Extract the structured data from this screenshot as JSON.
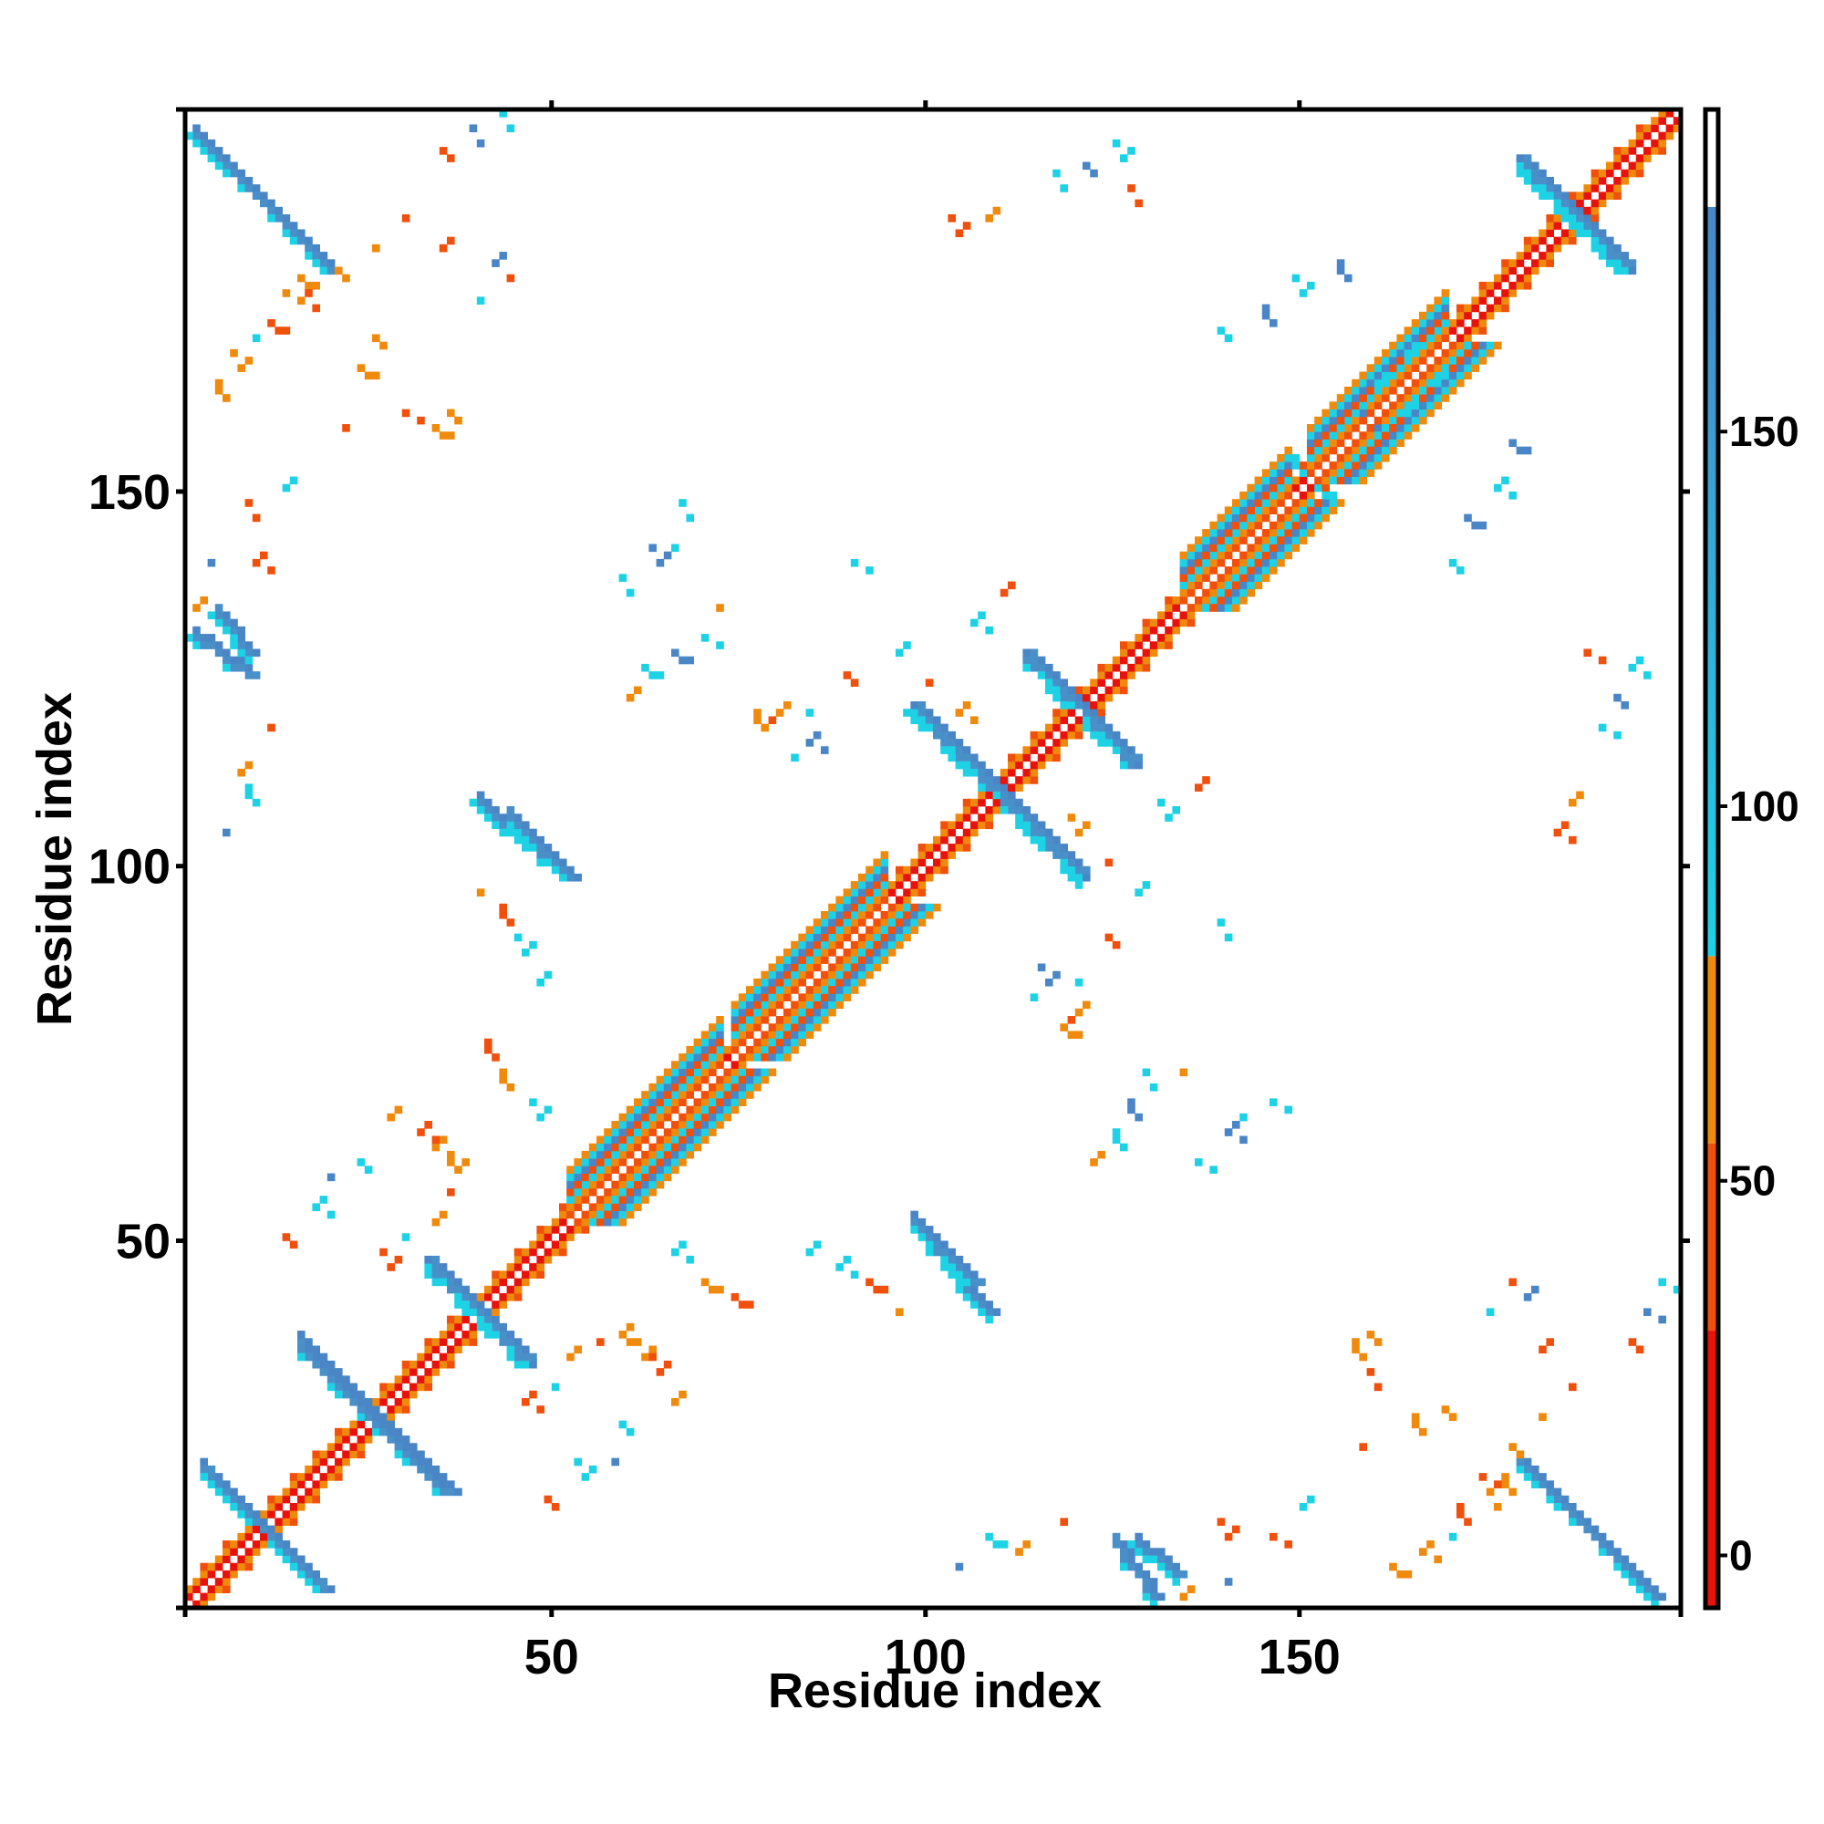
{
  "chart_data": {
    "type": "heatmap",
    "title": "",
    "xlabel": "Residue index",
    "ylabel": "Residue index",
    "xlim": [
      1,
      201
    ],
    "ylim": [
      1,
      201
    ],
    "x_ticks": [
      50,
      100,
      150
    ],
    "y_ticks": [
      50,
      100,
      150
    ],
    "x_tick_labels": [
      "50",
      "100",
      "150"
    ],
    "y_tick_labels": [
      "50",
      "100",
      "150"
    ],
    "grid": false,
    "colorbar": {
      "position": "right",
      "ticks": [
        0,
        50,
        100,
        150
      ],
      "tick_labels": [
        "0",
        "50",
        "100",
        "150"
      ],
      "range": [
        -7,
        193
      ],
      "segments": [
        {
          "from": -7,
          "to": 30,
          "color": "#e8120c"
        },
        {
          "from": 30,
          "to": 55,
          "color": "#f0500c"
        },
        {
          "from": 55,
          "to": 80,
          "color": "#f08a0c"
        },
        {
          "from": 80,
          "to": 180,
          "color": "#1ed2e6",
          "to_color": "#4a86c6"
        },
        {
          "from": 180,
          "to": 193,
          "color": "#ffffff"
        }
      ]
    },
    "palette": {
      "diag_red": "#e8120c",
      "red_orange": "#f0500c",
      "orange": "#f08a0c",
      "cyan": "#1ed2e6",
      "blue": "#4a86c6",
      "steel_blue": "#4a90c8"
    },
    "features": [
      {
        "kind": "diagonal-band",
        "from": 1,
        "to": 201
      },
      {
        "kind": "helix",
        "from": 52,
        "to": 72
      },
      {
        "kind": "helix",
        "from": 74,
        "to": 94
      },
      {
        "kind": "helix",
        "from": 134,
        "to": 148
      },
      {
        "kind": "helix",
        "from": 151,
        "to": 169
      },
      {
        "kind": "sheet-pair",
        "a": [
          3,
          18
        ],
        "b": [
          19,
          4
        ]
      },
      {
        "kind": "sheet-pair",
        "a": [
          16,
          35
        ],
        "b": [
          36,
          16
        ]
      },
      {
        "kind": "sheet-pair",
        "a": [
          33,
          46
        ],
        "b": [
          46,
          34
        ]
      },
      {
        "kind": "sheet-pair",
        "a": [
          98,
          120
        ],
        "b": [
          120,
          99
        ]
      },
      {
        "kind": "sheet-pair",
        "a": [
          113,
          127
        ],
        "b": [
          127,
          114
        ]
      },
      {
        "kind": "sheet-pair",
        "a": [
          179,
          193
        ],
        "b": [
          193,
          180
        ]
      },
      {
        "kind": "sheet-pair",
        "a": [
          2,
          20
        ],
        "b": [
          197,
          179
        ]
      },
      {
        "kind": "sheet-pair",
        "a": [
          2,
          9
        ],
        "b": [
          130,
          125
        ]
      },
      {
        "kind": "sheet-pair",
        "a": [
          40,
          49
        ],
        "b": [
          108,
          100
        ]
      },
      {
        "kind": "sheet-pair",
        "a": [
          98,
          106
        ],
        "b": [
          52,
          44
        ]
      },
      {
        "kind": "sheet-pair",
        "a": [
          128,
          133
        ],
        "b": [
          9,
          5
        ]
      }
    ]
  }
}
